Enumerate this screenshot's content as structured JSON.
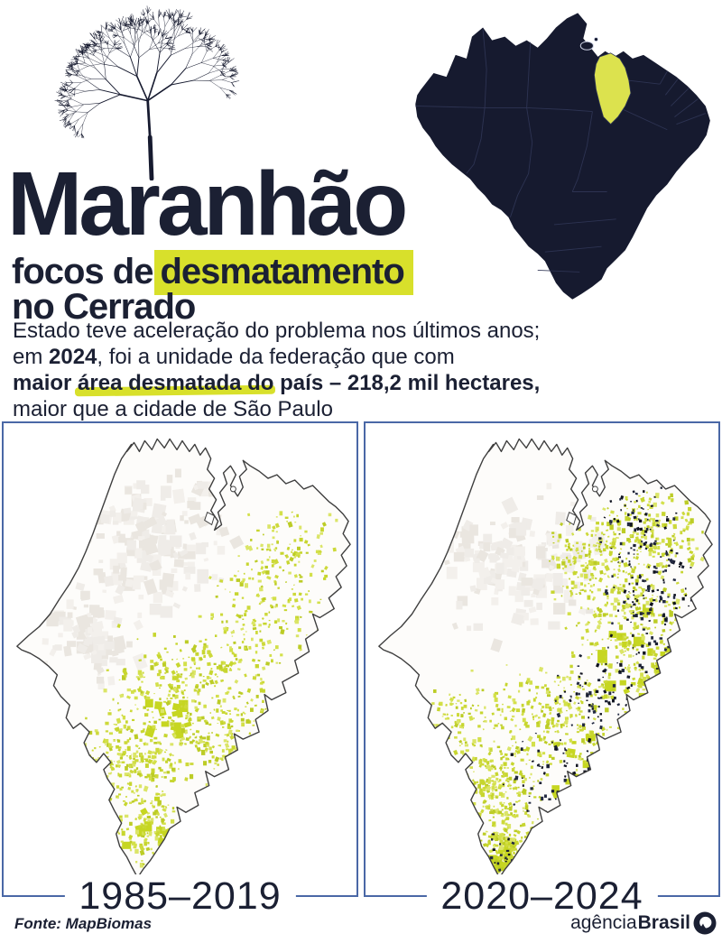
{
  "header": {
    "title": "Maranhão",
    "subtitle_prefix": "focos de",
    "subtitle_highlight": "desmatamento",
    "subtitle_line2": "no Cerrado",
    "paragraph": {
      "line1": "Estado teve aceleração do problema nos últimos anos;",
      "line2_prefix": "em ",
      "line2_bold": "2024",
      "line2_suffix": ", foi a unidade da federação que com",
      "line3_bold_prefix": "maior ",
      "line3_marked": "área desmatada do",
      "line3_bold_suffix": " país – 218,2 mil hectares,",
      "line4": "maior que a cidade de São Paulo"
    }
  },
  "locator_map": {
    "country": "Brasil",
    "highlighted_state": "Maranhão"
  },
  "panels": [
    {
      "label": "1985–2019"
    },
    {
      "label": "2020–2024"
    }
  ],
  "footer": {
    "source": "Fonte: MapBiomas",
    "logo_regular": "agência",
    "logo_bold": "Brasil"
  },
  "colors": {
    "navy": "#1b2033",
    "navy_map": "#161a2f",
    "navy_border_lines": "#2e3554",
    "accent": "#d8e02b",
    "state_highlight": "#dce24e",
    "frame_blue": "#4a68a6",
    "outline_gray": "#3e3e3e",
    "map_fill": "#fdfcfa",
    "speckle_greens": [
      "#c7d62f",
      "#d3e04a",
      "#bccc26",
      "#dbe568",
      "#cdd93a"
    ],
    "speckle_bright": "#c6d621",
    "speckle_dark": [
      "#1b2033",
      "#232a42",
      "#10131f"
    ],
    "speckle_pale": [
      "#efece8",
      "#eae6e0",
      "#f3f0ec"
    ]
  }
}
